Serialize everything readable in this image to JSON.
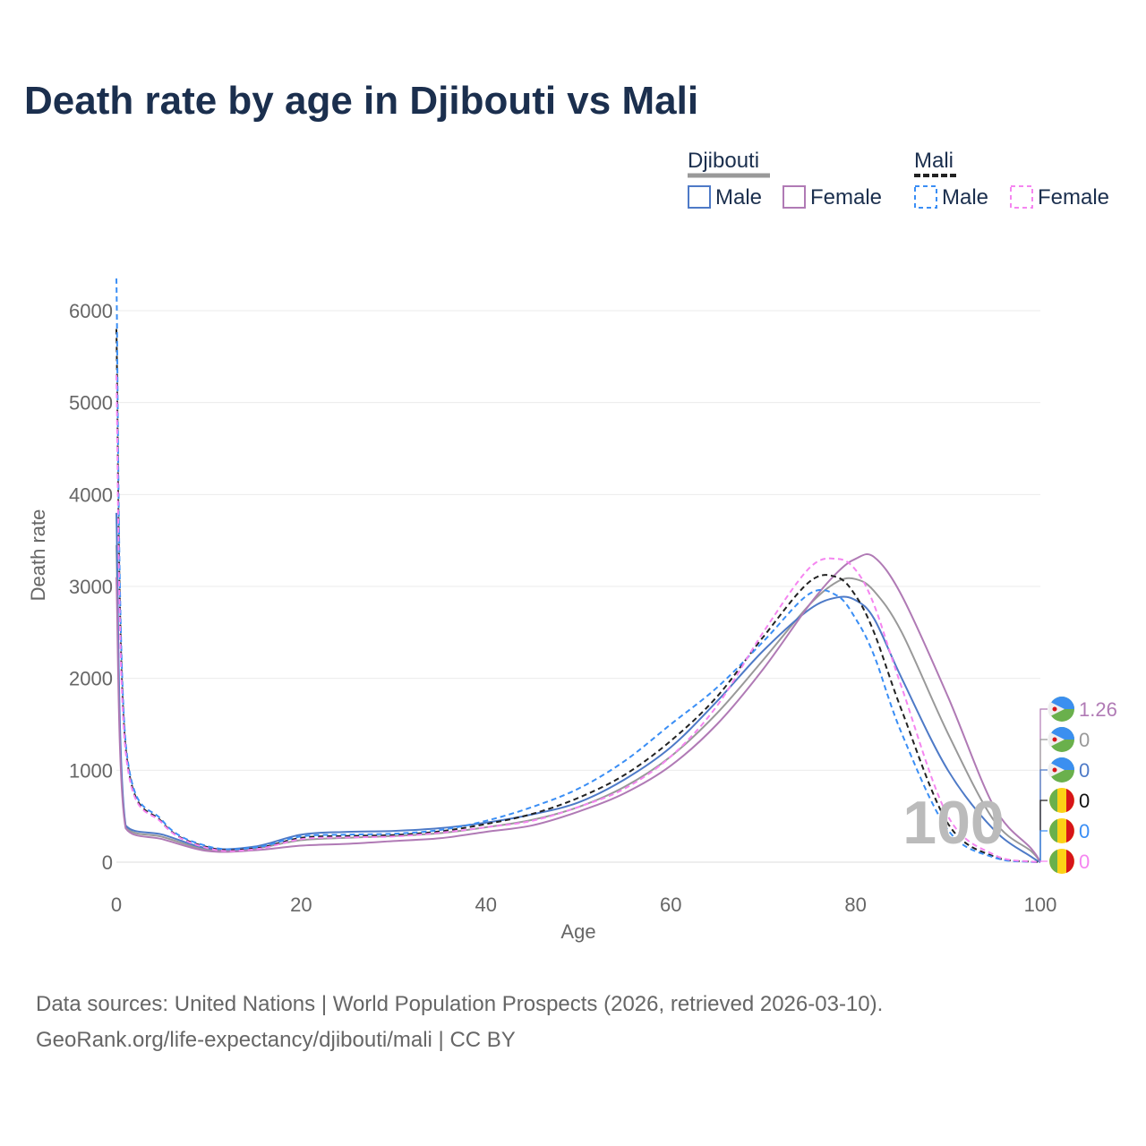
{
  "title": "Death rate by age in Djibouti vs Mali",
  "source_line1": "Data sources: United Nations | World Population Prospects (2026, retrieved 2026-03-10).",
  "source_line2": "GeoRank.org/life-expectancy/djibouti/mali | CC BY",
  "legend": {
    "group1": "Djibouti",
    "group2": "Mali",
    "male": "Male",
    "female": "Female"
  },
  "overlay_label": "100",
  "chart_data": {
    "type": "line",
    "title": "Death rate by age in Djibouti vs Mali",
    "xlabel": "Age",
    "ylabel": "Death rate",
    "xlim": [
      0,
      100
    ],
    "ylim": [
      0,
      6000
    ],
    "xticks": [
      0,
      20,
      40,
      60,
      80,
      100
    ],
    "yticks": [
      0,
      1000,
      2000,
      3000,
      4000,
      5000,
      6000
    ],
    "grid": true,
    "legend_position": "top-right",
    "x": [
      0,
      1,
      5,
      10,
      15,
      20,
      25,
      30,
      35,
      40,
      45,
      50,
      55,
      60,
      65,
      70,
      75,
      78,
      80,
      82,
      85,
      90,
      95,
      99,
      100
    ],
    "series": [
      {
        "name": "Djibouti Total",
        "color": "#999999",
        "dash": false,
        "end_label": "0",
        "flag": "djibouti",
        "values": [
          3450,
          385,
          275,
          135,
          150,
          240,
          265,
          285,
          315,
          380,
          460,
          600,
          820,
          1150,
          1620,
          2200,
          2800,
          3050,
          3080,
          2950,
          2500,
          1400,
          450,
          120,
          0
        ]
      },
      {
        "name": "Djibouti Male",
        "color": "#4e7ac7",
        "dash": false,
        "end_label": "0",
        "flag": "djibouti",
        "values": [
          3800,
          400,
          300,
          150,
          170,
          300,
          330,
          340,
          370,
          430,
          520,
          650,
          900,
          1250,
          1750,
          2300,
          2750,
          2880,
          2850,
          2650,
          2000,
          1000,
          350,
          60,
          0
        ]
      },
      {
        "name": "Djibouti Female",
        "color": "#b07ab5",
        "dash": false,
        "end_label": "1.26",
        "flag": "djibouti",
        "values": [
          3100,
          370,
          250,
          120,
          130,
          180,
          200,
          230,
          260,
          330,
          400,
          550,
          750,
          1050,
          1500,
          2100,
          2800,
          3150,
          3300,
          3320,
          2900,
          1800,
          600,
          150,
          1.26
        ]
      },
      {
        "name": "Mali Total",
        "color": "#222222",
        "dash": true,
        "end_label": "0",
        "flag": "mali",
        "values": [
          5800,
          1250,
          430,
          160,
          150,
          265,
          285,
          295,
          335,
          415,
          525,
          700,
          950,
          1320,
          1800,
          2450,
          3050,
          3100,
          2900,
          2500,
          1650,
          420,
          60,
          5,
          0
        ]
      },
      {
        "name": "Mali Male",
        "color": "#3a8ef5",
        "dash": true,
        "end_label": "0",
        "flag": "mali",
        "values": [
          6350,
          1300,
          450,
          170,
          160,
          280,
          300,
          310,
          350,
          450,
          600,
          800,
          1100,
          1500,
          1900,
          2400,
          2920,
          2900,
          2650,
          2250,
          1400,
          350,
          50,
          3,
          0
        ]
      },
      {
        "name": "Mali Female",
        "color": "#f585f0",
        "dash": true,
        "end_label": "0",
        "flag": "mali",
        "values": [
          5300,
          1200,
          420,
          150,
          140,
          250,
          270,
          280,
          320,
          380,
          450,
          600,
          800,
          1150,
          1700,
          2500,
          3200,
          3300,
          3180,
          2800,
          1900,
          500,
          80,
          6,
          0
        ]
      }
    ]
  }
}
